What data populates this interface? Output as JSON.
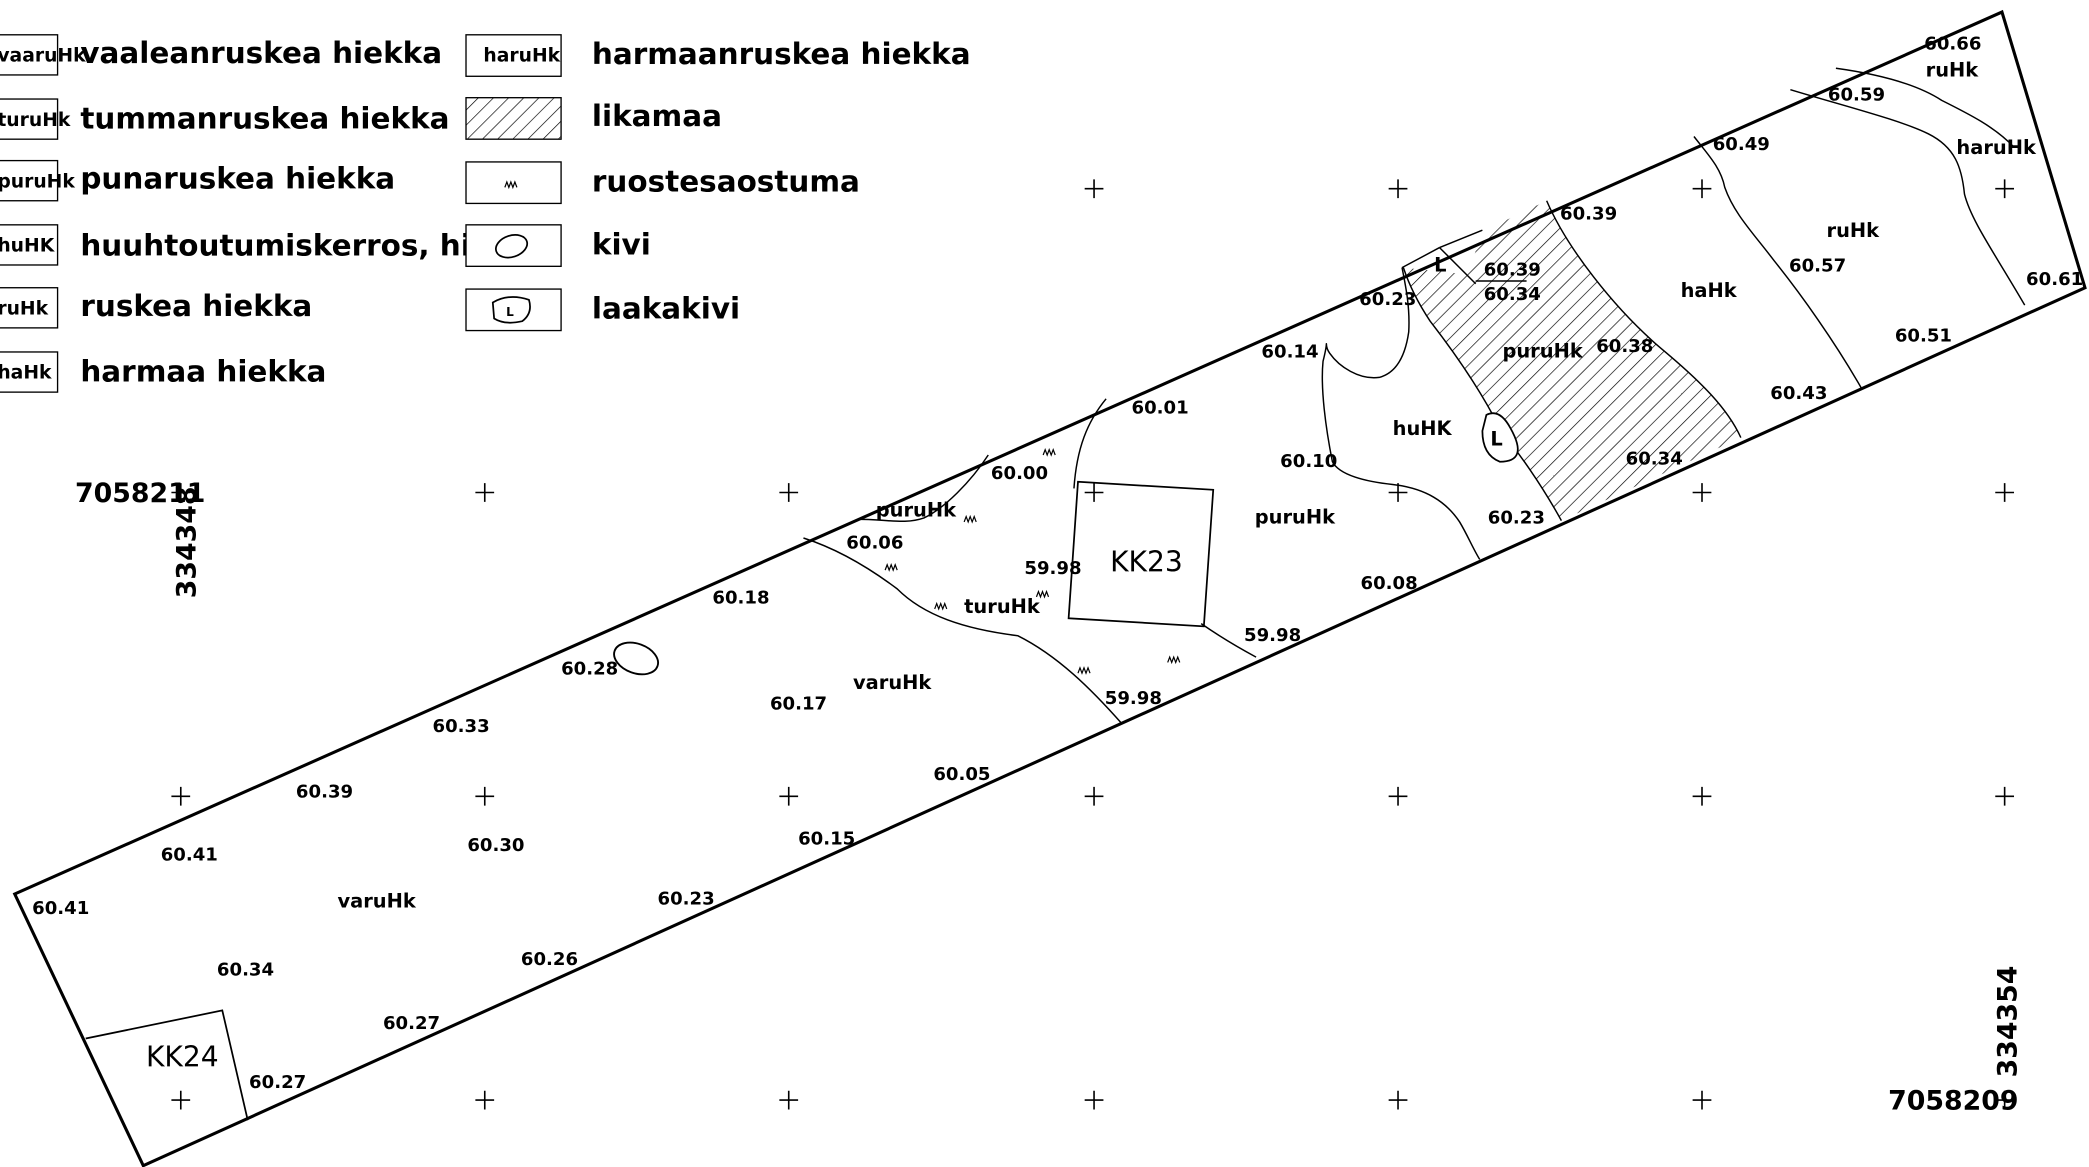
{
  "legend": {
    "items": [
      {
        "code": "vaaruHk",
        "label": "vaaleanruskea hiekka"
      },
      {
        "code": "turuHk",
        "label": "tummanruskea hiekka"
      },
      {
        "code": "puruHk",
        "label": "punaruskea hiekka"
      },
      {
        "code": "huHK",
        "label": "huuhtoutumiskerros, hiekka"
      },
      {
        "code": "ruHk",
        "label": "ruskea hiekka"
      },
      {
        "code": "haHk",
        "label": "harmaa hiekka"
      },
      {
        "code": "haruHk",
        "label": "harmaanruskea hiekka"
      },
      {
        "code": "",
        "label": "likamaa"
      },
      {
        "code": "",
        "label": "ruostesaostuma"
      },
      {
        "code": "",
        "label": "kivi"
      },
      {
        "code": "L",
        "label": "laakakivi"
      }
    ]
  },
  "coordinates": {
    "north_top": "7058211",
    "east_left": "334348",
    "north_bottom": "7058209",
    "east_right": "334354"
  },
  "test_pits": [
    "KK23",
    "KK24"
  ],
  "boulder_mark": "L",
  "soil_labels": [
    "ruHk",
    "haruHk",
    "ruHk",
    "haHk",
    "puruHk",
    "huHK",
    "puruHk",
    "puruHk",
    "turuHk",
    "varuHk",
    "varuHk"
  ],
  "elevations": [
    "60.66",
    "60.59",
    "60.49",
    "60.39",
    "60.39",
    "60.34",
    "60.23",
    "60.14",
    "60.57",
    "60.61",
    "60.38",
    "60.51",
    "60.43",
    "60.34",
    "60.01",
    "60.10",
    "60.00",
    "60.23",
    "60.06",
    "59.98",
    "60.08",
    "59.98",
    "60.18",
    "59.98",
    "60.28",
    "60.17",
    "60.33",
    "60.05",
    "60.39",
    "60.15",
    "60.41",
    "60.30",
    "60.41",
    "60.23",
    "60.34",
    "60.26",
    "60.27",
    "60.27"
  ]
}
